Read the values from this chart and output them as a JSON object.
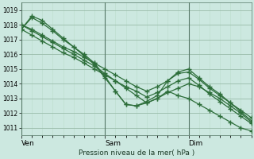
{
  "title": "Pression niveau de la mer( hPa )",
  "background_color": "#cce8e0",
  "plot_bg_color": "#cce8e0",
  "grid_color_major": "#99bbaa",
  "grid_color_minor": "#bbddcc",
  "line_color": "#2d6e3a",
  "ylim": [
    1010.5,
    1019.5
  ],
  "yticks": [
    1011,
    1012,
    1013,
    1014,
    1015,
    1016,
    1017,
    1018,
    1019
  ],
  "day_labels": [
    "Ven",
    "Sam",
    "Dim"
  ],
  "day_positions": [
    0,
    24,
    48
  ],
  "total_hours": 66,
  "n_points": 23,
  "series": [
    [
      1018.0,
      1017.6,
      1017.2,
      1016.8,
      1016.4,
      1016.0,
      1015.6,
      1015.2,
      1014.7,
      1014.2,
      1013.7,
      1013.2,
      1012.7,
      1013.0,
      1013.4,
      1013.7,
      1014.0,
      1013.8,
      1013.4,
      1013.0,
      1012.5,
      1012.0,
      1011.4
    ],
    [
      1017.7,
      1018.5,
      1018.1,
      1017.6,
      1017.0,
      1016.5,
      1016.0,
      1015.4,
      1014.5,
      1013.5,
      1012.6,
      1012.5,
      1012.7,
      1013.0,
      1013.5,
      1013.2,
      1013.0,
      1012.6,
      1012.2,
      1011.8,
      1011.4,
      1011.0,
      1010.8
    ],
    [
      1017.7,
      1018.6,
      1018.3,
      1017.7,
      1017.1,
      1016.5,
      1015.9,
      1015.3,
      1014.4,
      1013.5,
      1012.6,
      1012.5,
      1012.8,
      1013.2,
      1014.2,
      1014.8,
      1015.0,
      1014.4,
      1013.8,
      1013.3,
      1012.7,
      1012.1,
      1011.5
    ],
    [
      1018.0,
      1017.7,
      1017.3,
      1016.9,
      1016.5,
      1016.2,
      1015.8,
      1015.4,
      1015.0,
      1014.6,
      1014.2,
      1013.8,
      1013.5,
      1013.8,
      1014.2,
      1014.7,
      1014.8,
      1014.3,
      1013.7,
      1013.2,
      1012.7,
      1012.2,
      1011.7
    ],
    [
      1017.7,
      1017.3,
      1016.9,
      1016.5,
      1016.1,
      1015.8,
      1015.4,
      1015.0,
      1014.6,
      1014.2,
      1013.8,
      1013.5,
      1013.1,
      1013.4,
      1013.8,
      1014.2,
      1014.4,
      1013.9,
      1013.3,
      1012.8,
      1012.3,
      1011.8,
      1011.3
    ]
  ]
}
